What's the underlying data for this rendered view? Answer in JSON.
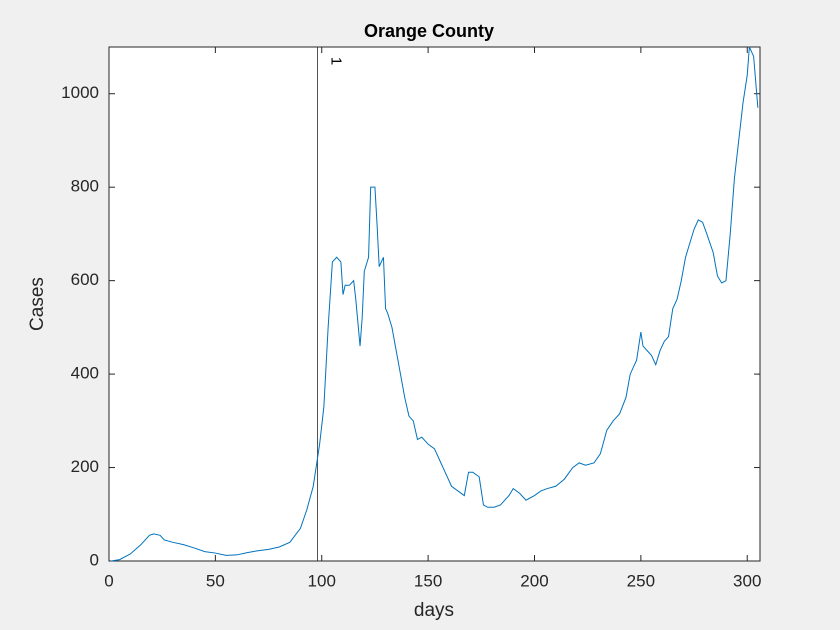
{
  "chart_data": {
    "type": "line",
    "title": "Orange County",
    "xlabel": "days",
    "ylabel": "Cases",
    "xlim": [
      0,
      306
    ],
    "ylim": [
      0,
      1100
    ],
    "xticks": [
      0,
      50,
      100,
      150,
      200,
      250,
      300
    ],
    "yticks": [
      0,
      200,
      400,
      600,
      800,
      1000
    ],
    "vline": {
      "x": 98,
      "label": "1"
    },
    "x": [
      1,
      5,
      10,
      15,
      19,
      21,
      24,
      26,
      30,
      35,
      40,
      45,
      50,
      55,
      60,
      65,
      70,
      75,
      80,
      85,
      90,
      93,
      96,
      99,
      101,
      103,
      105,
      107,
      109,
      110,
      111,
      113,
      115,
      116,
      118,
      119,
      120,
      122,
      123,
      125,
      126,
      127,
      129,
      130,
      131,
      133,
      135,
      137,
      139,
      141,
      143,
      145,
      147,
      150,
      153,
      156,
      158,
      161,
      164,
      167,
      169,
      171,
      174,
      176,
      178,
      181,
      184,
      188,
      190,
      193,
      196,
      200,
      203,
      206,
      210,
      214,
      218,
      221,
      224,
      228,
      231,
      234,
      237,
      240,
      243,
      245,
      248,
      250,
      251,
      253,
      255,
      257,
      259,
      261,
      263,
      265,
      267,
      269,
      271,
      273,
      275,
      277,
      279,
      281,
      284,
      286,
      288,
      290,
      292,
      294,
      296,
      298,
      300,
      301,
      303,
      305
    ],
    "series": [
      {
        "name": "Cases",
        "color": "#0072bd",
        "values": [
          0,
          3,
          15,
          35,
          55,
          58,
          55,
          45,
          40,
          35,
          28,
          20,
          17,
          12,
          13,
          18,
          22,
          25,
          30,
          40,
          70,
          110,
          160,
          250,
          330,
          500,
          640,
          650,
          640,
          570,
          590,
          590,
          600,
          560,
          460,
          520,
          620,
          650,
          800,
          800,
          720,
          630,
          650,
          540,
          530,
          500,
          450,
          400,
          350,
          310,
          300,
          260,
          265,
          250,
          240,
          210,
          190,
          160,
          150,
          140,
          190,
          190,
          180,
          120,
          115,
          115,
          120,
          140,
          155,
          145,
          130,
          140,
          150,
          155,
          160,
          175,
          200,
          210,
          205,
          210,
          230,
          280,
          300,
          315,
          350,
          400,
          430,
          490,
          460,
          450,
          440,
          420,
          450,
          470,
          480,
          540,
          560,
          600,
          650,
          680,
          710,
          730,
          725,
          700,
          660,
          610,
          595,
          600,
          700,
          820,
          900,
          980,
          1040,
          1100,
          1080,
          970
        ]
      }
    ]
  }
}
